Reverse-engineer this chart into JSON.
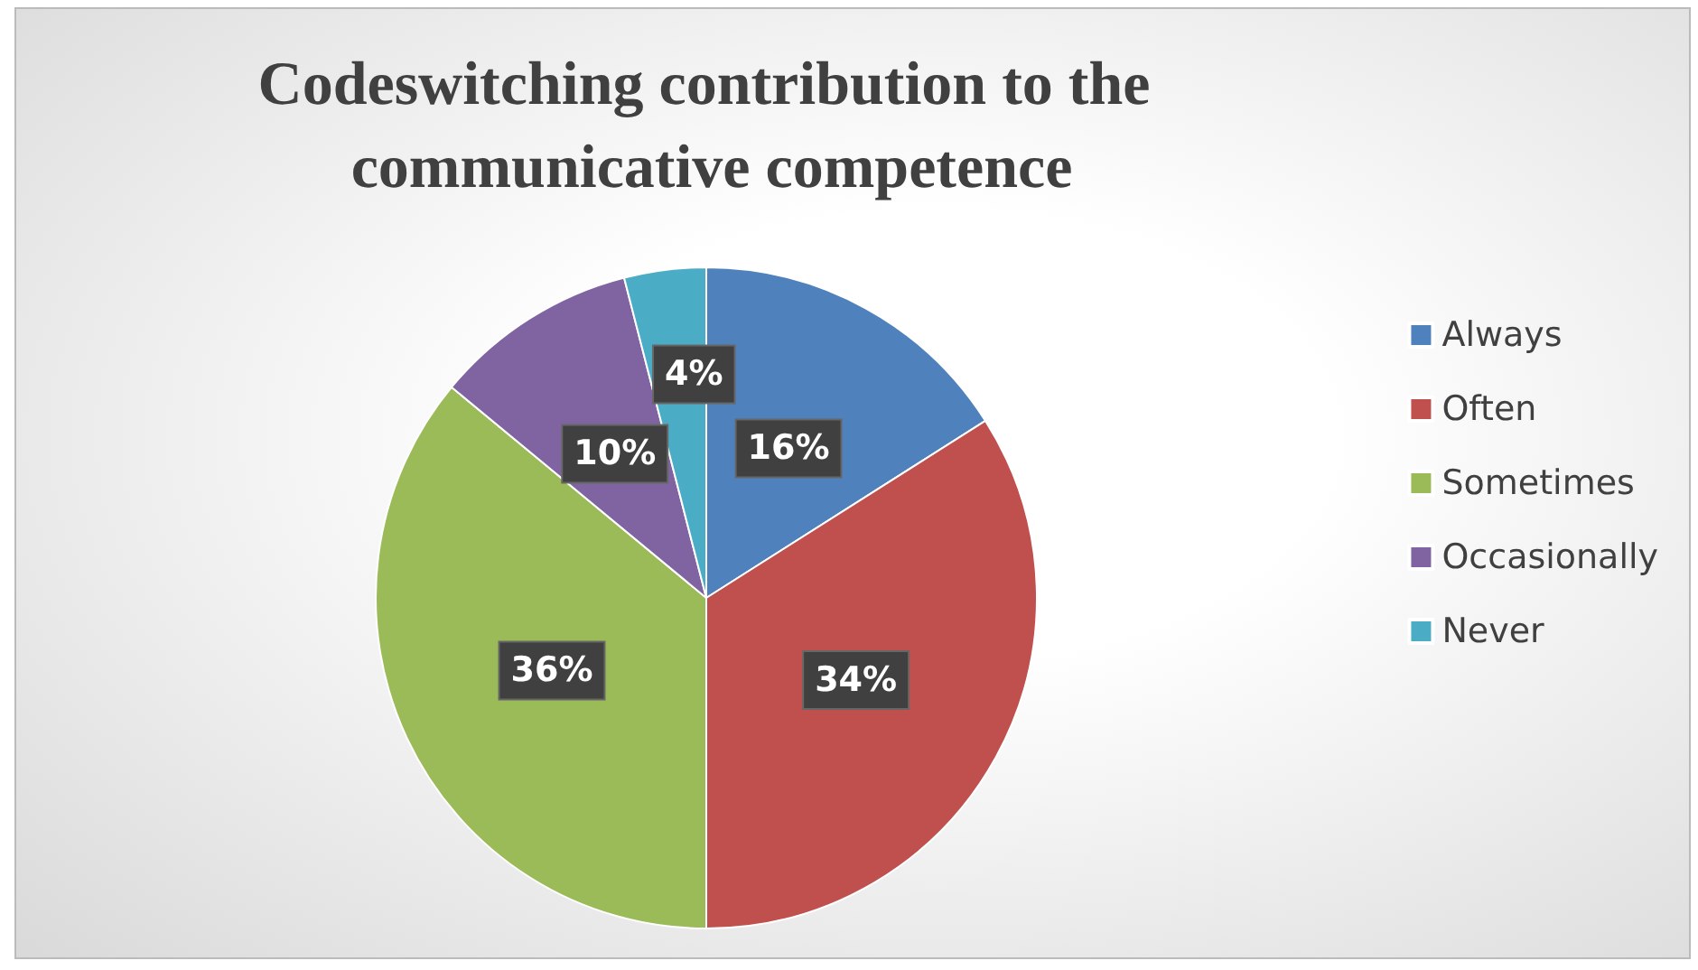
{
  "chart_data": {
    "type": "pie",
    "title": "Codeswitching contribution to the communicative competence",
    "categories": [
      "Always",
      "Often",
      "Sometimes",
      "Occasionally",
      "Never"
    ],
    "values": [
      16,
      34,
      36,
      10,
      4
    ],
    "value_labels": [
      "16%",
      "34%",
      "36%",
      "10%",
      "4%"
    ],
    "colors": [
      "#4f81bd",
      "#c0504d",
      "#9bbb59",
      "#8064a2",
      "#4bacc6"
    ],
    "legend": "right"
  }
}
